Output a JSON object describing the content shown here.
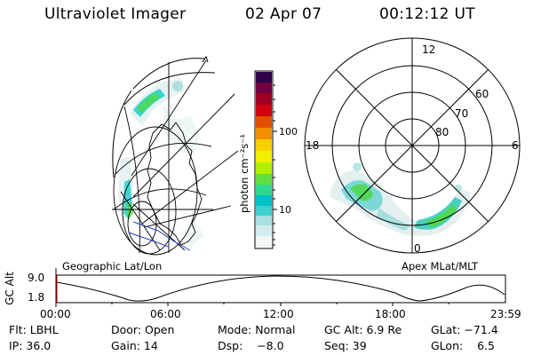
{
  "header": {
    "title": "Ultraviolet Imager",
    "date": "02 Apr 07",
    "time": "00:12:12 UT"
  },
  "panels": {
    "left_label": "Geographic Lat/Lon",
    "right_label": "Apex MLat/MLT"
  },
  "colorbar": {
    "unit_label": "photon cm⁻²s⁻¹",
    "ticks": [
      "100",
      "10"
    ]
  },
  "polar_plot": {
    "mlt_labels": {
      "top": "12",
      "left": "18",
      "right": "6",
      "bottom": "0"
    },
    "lat_labels": [
      "60",
      "70",
      "80"
    ]
  },
  "altitude_strip": {
    "axis_title": "GC Alt",
    "y_ticks": [
      "9.0",
      "1.8"
    ],
    "x_ticks": [
      "00:00",
      "06:00",
      "12:00",
      "18:00",
      "23:59"
    ]
  },
  "status": {
    "filter": "Flt: LBHL",
    "door": "Door: Open",
    "mode": "Mode: Normal",
    "gc_alt": "GC Alt: 6.9 Re",
    "glat": "GLat: −71.4",
    "ip": "IP: 36.0",
    "gain": "Gain: 14",
    "dsp": "Dsp:    −8.0",
    "seq": "Seq: 39",
    "glon": "GLon:    6.5"
  },
  "colors": {
    "low": "#e8f4f4",
    "cyan": "#00c8c8",
    "green": "#50d850",
    "yellow": "#e8e800",
    "orange": "#f08c00",
    "red": "#d00000",
    "darkred": "#800000",
    "purple": "#400050"
  }
}
